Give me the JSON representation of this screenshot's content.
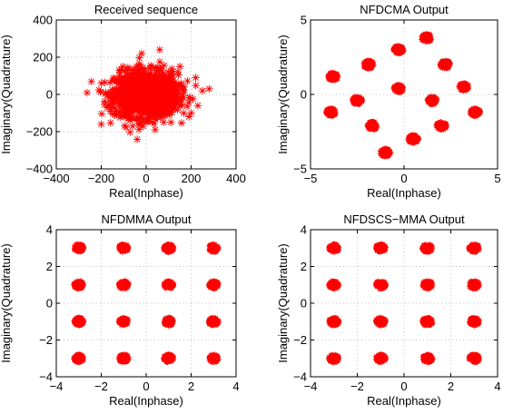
{
  "chart_data": [
    {
      "type": "scatter",
      "title": "Received sequence",
      "xlabel": "Real(Inphase)",
      "ylabel": "Imaginary(Quadrature)",
      "xlim": [
        -400,
        400
      ],
      "ylim": [
        -400,
        400
      ],
      "xticks": [
        -400,
        -200,
        0,
        200,
        400
      ],
      "yticks": [
        -400,
        -200,
        0,
        200,
        400
      ],
      "grid": true,
      "marker": "*",
      "color": "#ff0000",
      "cloud": {
        "center": [
          0,
          0
        ],
        "spread": [
          70,
          60
        ]
      },
      "points": [
        [
          -40,
          80
        ],
        [
          220,
          90
        ],
        [
          280,
          30
        ],
        [
          -180,
          10
        ],
        [
          -160,
          -90
        ],
        [
          230,
          -60
        ],
        [
          60,
          240
        ],
        [
          -120,
          130
        ],
        [
          200,
          -100
        ],
        [
          -200,
          -160
        ],
        [
          -20,
          220
        ],
        [
          110,
          -150
        ],
        [
          -130,
          -110
        ],
        [
          250,
          20
        ],
        [
          -100,
          60
        ],
        [
          150,
          150
        ],
        [
          -60,
          -170
        ],
        [
          40,
          -190
        ]
      ]
    },
    {
      "type": "scatter",
      "title": "NFDCMA Output",
      "xlabel": "Real(Inphase)",
      "ylabel": "Imaginary(Quadrature)",
      "xlim": [
        -5,
        5
      ],
      "ylim": [
        -5,
        5
      ],
      "xticks": [
        -5,
        0,
        5
      ],
      "yticks": [
        -5,
        0,
        5
      ],
      "grid": true,
      "marker": "*",
      "color": "#ff0000",
      "clusters": [
        [
          1.2,
          3.8
        ],
        [
          -0.3,
          3.0
        ],
        [
          -1.9,
          2.0
        ],
        [
          2.2,
          2.0
        ],
        [
          -3.8,
          1.2
        ],
        [
          3.2,
          0.5
        ],
        [
          -2.5,
          -0.4
        ],
        [
          -0.3,
          0.4
        ],
        [
          1.5,
          -0.4
        ],
        [
          -3.9,
          -1.2
        ],
        [
          3.8,
          -1.2
        ],
        [
          -1.7,
          -2.1
        ],
        [
          2.0,
          -2.1
        ],
        [
          0.5,
          -3.0
        ],
        [
          -1.0,
          -3.9
        ]
      ]
    },
    {
      "type": "scatter",
      "title": "NFDMMA Output",
      "xlabel": "Real(Inphase)",
      "ylabel": "Imaginary(Quadrature)",
      "xlim": [
        -4,
        4
      ],
      "ylim": [
        -4,
        4
      ],
      "xticks": [
        -4,
        -2,
        0,
        2,
        4
      ],
      "yticks": [
        -4,
        -2,
        0,
        2,
        4
      ],
      "grid": true,
      "marker": "*",
      "color": "#ff0000",
      "clusters": [
        [
          -3,
          3
        ],
        [
          -1,
          3
        ],
        [
          1,
          3
        ],
        [
          3,
          3
        ],
        [
          -3,
          1
        ],
        [
          -1,
          1
        ],
        [
          1,
          1
        ],
        [
          3,
          1
        ],
        [
          -3,
          -1
        ],
        [
          -1,
          -1
        ],
        [
          1,
          -1
        ],
        [
          3,
          -1
        ],
        [
          -3,
          -3
        ],
        [
          -1,
          -3
        ],
        [
          1,
          -3
        ],
        [
          3,
          -3
        ]
      ]
    },
    {
      "type": "scatter",
      "title": "NFDSCS−MMA Output",
      "xlabel": "Real(Inphase)",
      "ylabel": "Imaginary(Quadrature)",
      "xlim": [
        -4,
        4
      ],
      "ylim": [
        -4,
        4
      ],
      "xticks": [
        -4,
        -2,
        0,
        2,
        4
      ],
      "yticks": [
        -4,
        -2,
        0,
        2,
        4
      ],
      "grid": true,
      "marker": "*",
      "color": "#ff0000",
      "clusters": [
        [
          -3,
          3
        ],
        [
          -1,
          3
        ],
        [
          1,
          3
        ],
        [
          3,
          3
        ],
        [
          -3,
          1
        ],
        [
          -1,
          1
        ],
        [
          1,
          1
        ],
        [
          3,
          1
        ],
        [
          -3,
          -1
        ],
        [
          -1,
          -1
        ],
        [
          1,
          -1
        ],
        [
          3,
          -1
        ],
        [
          -3,
          -3
        ],
        [
          -1,
          -3
        ],
        [
          1,
          -3
        ],
        [
          3,
          -3
        ]
      ]
    }
  ]
}
